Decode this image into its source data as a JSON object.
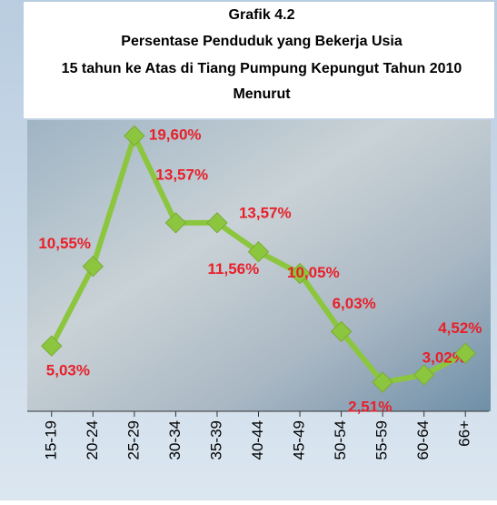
{
  "chart_data": {
    "type": "line",
    "title": [
      "Grafik 4.2",
      "Persentase Penduduk yang Bekerja Usia",
      "15 tahun ke Atas di Tiang Pumpung Kepungut Tahun 2010",
      "Menurut"
    ],
    "categories": [
      "15-19",
      "20-24",
      "25-29",
      "30-34",
      "35-39",
      "40-44",
      "45-49",
      "50-54",
      "55-59",
      "60-64",
      "66+"
    ],
    "values": [
      5.03,
      10.55,
      19.6,
      13.57,
      13.57,
      11.56,
      10.05,
      6.03,
      2.51,
      3.02,
      4.52
    ],
    "value_labels": [
      "5,03%",
      "10,55%",
      "19,60%",
      "13,57%",
      "13,57%",
      "11,56%",
      "10,05%",
      "6,03%",
      "2,51%",
      "3,02%",
      "4,52%"
    ],
    "color": "#8cc63f",
    "ylim": [
      0.5,
      20.5
    ]
  }
}
